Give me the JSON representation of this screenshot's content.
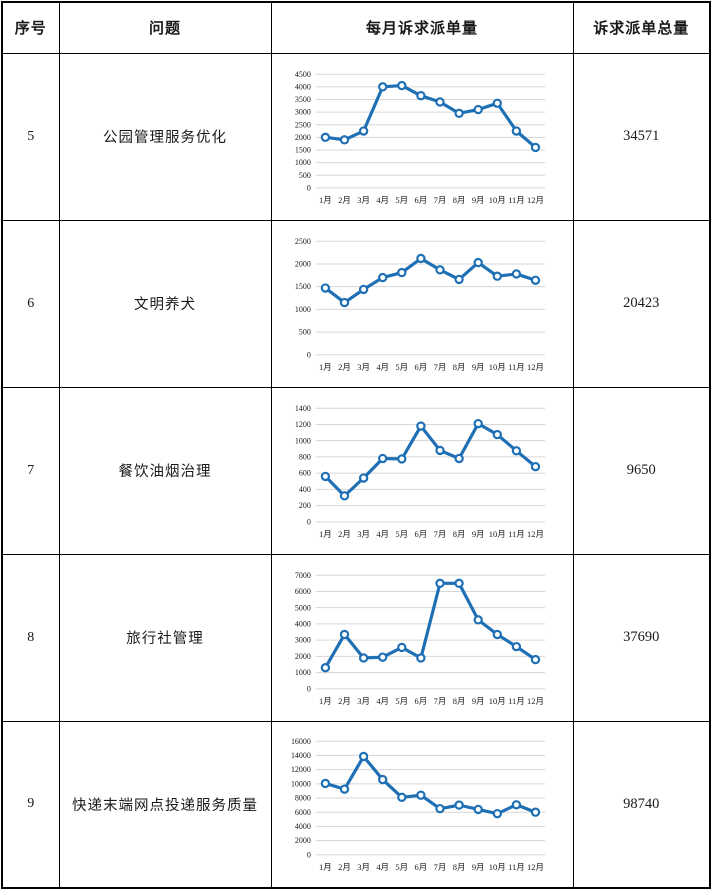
{
  "table": {
    "headers": {
      "index": "序号",
      "problem": "问题",
      "monthly": "每月诉求派单量",
      "total": "诉求派单总量"
    },
    "rows": [
      {
        "index": "5",
        "problem": "公园管理服务优化",
        "total": "34571"
      },
      {
        "index": "6",
        "problem": "文明养犬",
        "total": "20423"
      },
      {
        "index": "7",
        "problem": "餐饮油烟治理",
        "total": "9650"
      },
      {
        "index": "8",
        "problem": "旅行社管理",
        "total": "37690"
      },
      {
        "index": "9",
        "problem": "快递末端网点投递服务质量",
        "total": "98740"
      }
    ]
  },
  "colors": {
    "line": "#1F6FB5",
    "marker_fill": "#FFFFFF",
    "grid": "#D6D6D6",
    "table_border": "#000000",
    "text": "#1A1A1A"
  },
  "chart_data": [
    {
      "type": "line",
      "row": "5",
      "categories": [
        "1月",
        "2月",
        "3月",
        "4月",
        "5月",
        "6月",
        "7月",
        "8月",
        "9月",
        "10月",
        "11月",
        "12月"
      ],
      "values": [
        2000,
        1900,
        2250,
        4000,
        4050,
        3650,
        3400,
        2950,
        3100,
        3350,
        2250,
        1600
      ],
      "ylim": [
        0,
        4500
      ],
      "ytick": 500,
      "grid": true,
      "legend": "none"
    },
    {
      "type": "line",
      "row": "6",
      "categories": [
        "1月",
        "2月",
        "3月",
        "4月",
        "5月",
        "6月",
        "7月",
        "8月",
        "9月",
        "10月",
        "11月",
        "12月"
      ],
      "values": [
        1470,
        1150,
        1440,
        1700,
        1810,
        2120,
        1870,
        1660,
        2030,
        1730,
        1780,
        1640
      ],
      "ylim": [
        0,
        2500
      ],
      "ytick": 500,
      "grid": true,
      "legend": "none"
    },
    {
      "type": "line",
      "row": "7",
      "categories": [
        "1月",
        "2月",
        "3月",
        "4月",
        "5月",
        "6月",
        "7月",
        "8月",
        "9月",
        "10月",
        "11月",
        "12月"
      ],
      "values": [
        560,
        320,
        540,
        780,
        775,
        1180,
        880,
        780,
        1210,
        1075,
        875,
        680
      ],
      "ylim": [
        0,
        1400
      ],
      "ytick": 200,
      "grid": true,
      "legend": "none"
    },
    {
      "type": "line",
      "row": "8",
      "categories": [
        "1月",
        "2月",
        "3月",
        "4月",
        "5月",
        "6月",
        "7月",
        "8月",
        "9月",
        "10月",
        "11月",
        "12月"
      ],
      "values": [
        1300,
        3350,
        1900,
        1950,
        2550,
        1900,
        6500,
        6500,
        4250,
        3350,
        2600,
        1800
      ],
      "ylim": [
        0,
        7000
      ],
      "ytick": 1000,
      "grid": true,
      "legend": "none"
    },
    {
      "type": "line",
      "row": "9",
      "categories": [
        "1月",
        "2月",
        "3月",
        "4月",
        "5月",
        "6月",
        "7月",
        "8月",
        "9月",
        "10月",
        "11月",
        "12月"
      ],
      "values": [
        10050,
        9250,
        13850,
        10600,
        8100,
        8400,
        6500,
        7000,
        6400,
        5800,
        7050,
        6000
      ],
      "ylim": [
        0,
        16000
      ],
      "ytick": 2000,
      "grid": true,
      "legend": "none"
    }
  ]
}
